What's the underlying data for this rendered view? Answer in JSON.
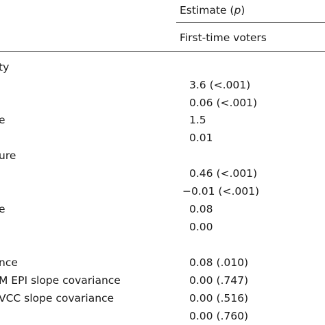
{
  "header": {
    "estimate_prefix": "Estimate (",
    "estimate_p": "p",
    "estimate_suffix": ")",
    "group": "First-time voters"
  },
  "rows": [
    {
      "label": "ty",
      "value": ""
    },
    {
      "label": "",
      "value": "3.6 (<.001)"
    },
    {
      "label": "",
      "value": "0.06 (<.001)"
    },
    {
      "label": "e",
      "value": "1.5"
    },
    {
      "label": "",
      "value": "0.01"
    },
    {
      "label": "ure",
      "value": ""
    },
    {
      "label": "",
      "value": "0.46 (<.001)"
    },
    {
      "label": "",
      "value": "−0.01 (<.001)"
    },
    {
      "label": "e",
      "value": "0.08"
    },
    {
      "label": "",
      "value": "0.00"
    },
    {
      "label": "",
      "value": ""
    },
    {
      "label": "nce",
      "value": "0.08 (.010)"
    },
    {
      "label": "M EPI slope covariance",
      "value": "0.00 (.747)"
    },
    {
      "label": "VCC slope covariance",
      "value": "0.00 (.516)"
    },
    {
      "label": "",
      "value": "0.00 (.760)"
    }
  ]
}
